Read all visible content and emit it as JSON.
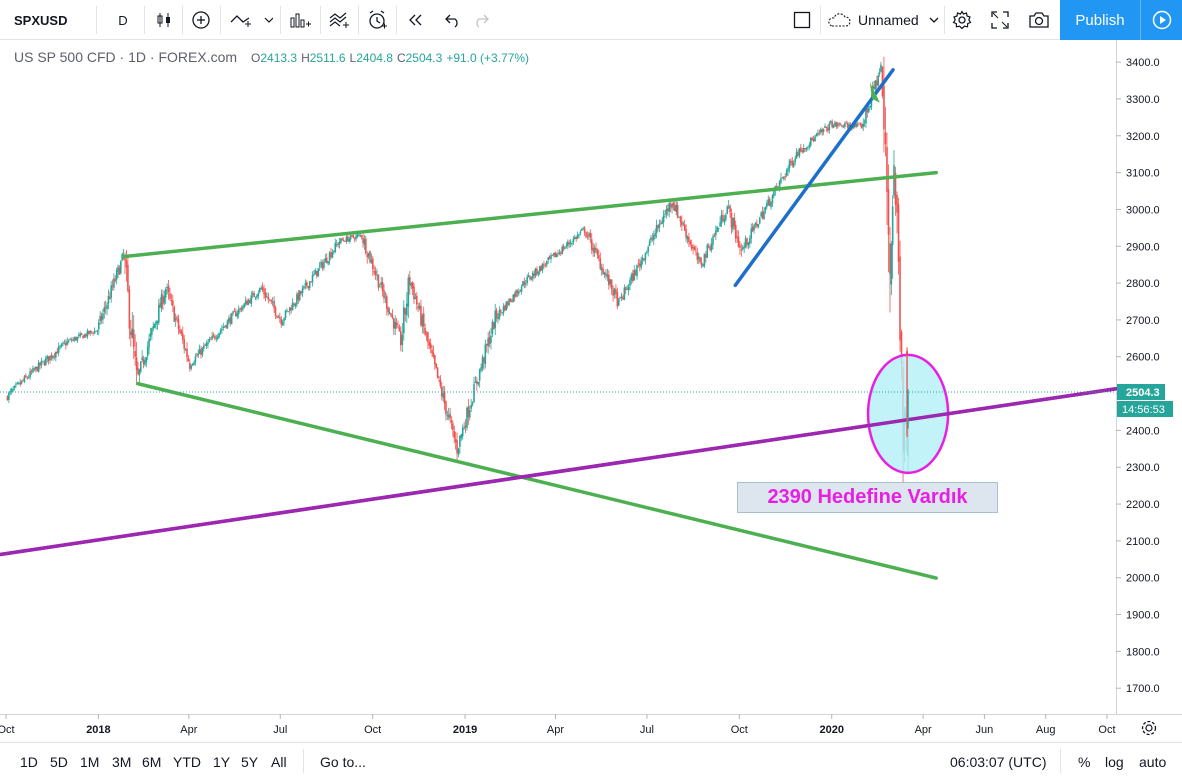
{
  "toolbar": {
    "symbol": "SPXUSD",
    "interval": "D",
    "layout_name": "Unnamed",
    "publish_label": "Publish"
  },
  "legend": {
    "title": "US SP 500 CFD · 1D · FOREX.com",
    "open_label": "O",
    "open": "2413.3",
    "high_label": "H",
    "high": "2511.6",
    "low_label": "L",
    "low": "2404.8",
    "close_label": "C",
    "close": "2504.3",
    "change": "+91.0 (+3.77%)"
  },
  "price_axis": {
    "labels": [
      "3400.0",
      "3300.0",
      "3200.0",
      "3100.0",
      "3000.0",
      "2900.0",
      "2800.0",
      "2700.0",
      "2600.0",
      "2500.0",
      "2400.0",
      "2300.0",
      "2200.0",
      "2100.0",
      "2000.0",
      "1900.0",
      "1800.0",
      "1700.0"
    ],
    "last_price": "2504.3",
    "countdown": "14:56:53"
  },
  "time_axis": {
    "labels": [
      "Oct",
      "2018",
      "Apr",
      "Jul",
      "Oct",
      "2019",
      "Apr",
      "Jul",
      "Oct",
      "2020",
      "Apr",
      "Jun",
      "Aug",
      "Oct"
    ]
  },
  "annotation": {
    "text": "2390 Hedefine Vardık"
  },
  "bottom": {
    "ranges": [
      "1D",
      "5D",
      "1M",
      "3M",
      "6M",
      "YTD",
      "1Y",
      "5Y",
      "All"
    ],
    "goto_label": "Go to...",
    "clock": "06:03:07 (UTC)",
    "percent_label": "%",
    "log_label": "log",
    "auto_label": "auto"
  },
  "colors": {
    "up": "#26a69a",
    "down": "#ef5350",
    "green_line": "#4caf50",
    "blue_line": "#1e6fc9",
    "purple_line": "#9c27b0",
    "ellipse_stroke": "#e91ee3",
    "ellipse_fill": "#b3f0f7",
    "accent": "#2196f3"
  },
  "chart_data": {
    "type": "candlestick",
    "symbol": "SPXUSD",
    "interval": "1D",
    "y_range": [
      1630,
      3460
    ],
    "x_range": [
      "2017-09-25",
      "2020-10-10"
    ],
    "path": [
      [
        "2017-10-01",
        2490
      ],
      [
        "2017-11-01",
        2570
      ],
      [
        "2017-12-01",
        2640
      ],
      [
        "2017-12-31",
        2673
      ],
      [
        "2018-01-26",
        2873
      ],
      [
        "2018-02-08",
        2532
      ],
      [
        "2018-03-09",
        2786
      ],
      [
        "2018-04-02",
        2581
      ],
      [
        "2018-05-15",
        2711
      ],
      [
        "2018-06-12",
        2786
      ],
      [
        "2018-07-02",
        2700
      ],
      [
        "2018-08-29",
        2914
      ],
      [
        "2018-09-20",
        2930
      ],
      [
        "2018-10-29",
        2641
      ],
      [
        "2018-11-07",
        2813
      ],
      [
        "2018-12-24",
        2351
      ],
      [
        "2019-01-31",
        2704
      ],
      [
        "2019-03-01",
        2803
      ],
      [
        "2019-04-30",
        2945
      ],
      [
        "2019-06-03",
        2744
      ],
      [
        "2019-07-26",
        3025
      ],
      [
        "2019-08-23",
        2847
      ],
      [
        "2019-09-19",
        3006
      ],
      [
        "2019-10-03",
        2887
      ],
      [
        "2019-11-27",
        3153
      ],
      [
        "2019-12-31",
        3230
      ],
      [
        "2020-01-31",
        3225
      ],
      [
        "2020-02-19",
        3386
      ],
      [
        "2020-02-28",
        2855
      ],
      [
        "2020-03-03",
        3130
      ],
      [
        "2020-03-09",
        2746
      ],
      [
        "2020-03-12",
        2480
      ],
      [
        "2020-03-16",
        2386
      ],
      [
        "2020-03-17",
        2504
      ]
    ],
    "last_candle": {
      "open": 2413.3,
      "high": 2511.6,
      "low": 2404.8,
      "close": 2504.3
    },
    "trendlines": [
      {
        "color": "green",
        "from": [
          "2018-01-26",
          2872
        ],
        "to": [
          "2020-04-14",
          3100
        ]
      },
      {
        "color": "green",
        "from": [
          "2018-02-09",
          2527
        ],
        "to": [
          "2020-04-14",
          1999
        ]
      },
      {
        "color": "blue",
        "from": [
          "2019-09-27",
          2794
        ],
        "to": [
          "2020-03-02",
          3379
        ]
      },
      {
        "color": "purple",
        "from": [
          "2017-09-25",
          2063
        ],
        "to": [
          "2020-10-10",
          2513
        ]
      }
    ],
    "highlight": {
      "shape": "ellipse",
      "center": [
        "2020-03-17",
        2445
      ],
      "note": "2390 Hedefine Vardık"
    }
  }
}
